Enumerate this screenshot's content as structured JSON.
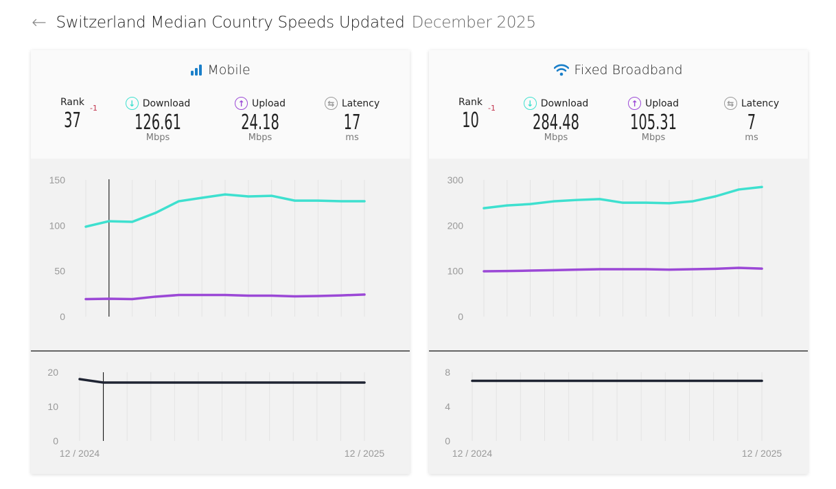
{
  "header": {
    "back_icon": "arrow-left-icon",
    "title": "Switzerland Median Country Speeds Updated",
    "date": "December 2025"
  },
  "colors": {
    "download": "#3ee0cf",
    "upload": "#9b48d6",
    "latency": "#1f2433",
    "rank_change": "#c0304a",
    "mobile_icon": "#1a7fc9"
  },
  "cards": [
    {
      "title": "Mobile",
      "icon": "signal-bars-icon",
      "rank": "37",
      "rank_change": "-1",
      "rank_label": "Rank",
      "download_label": "Download",
      "download": "126.61",
      "download_unit": "Mbps",
      "upload_label": "Upload",
      "upload": "24.18",
      "upload_unit": "Mbps",
      "latency_label": "Latency",
      "latency": "17",
      "latency_unit": "ms",
      "x_start": "12 / 2024",
      "x_end": "12 / 2025"
    },
    {
      "title": "Fixed Broadband",
      "icon": "wifi-icon",
      "rank": "10",
      "rank_change": "-1",
      "rank_label": "Rank",
      "download_label": "Download",
      "download": "284.48",
      "download_unit": "Mbps",
      "upload_label": "Upload",
      "upload": "105.31",
      "upload_unit": "Mbps",
      "latency_label": "Latency",
      "latency": "7",
      "latency_unit": "ms",
      "x_start": "12 / 2024",
      "x_end": "12 / 2025"
    }
  ],
  "chart_data": [
    {
      "type": "line",
      "card": "Mobile",
      "ylim": [
        0,
        150
      ],
      "yticks": [
        "0",
        "50",
        "100",
        "150"
      ],
      "series": [
        {
          "key": "download",
          "values": [
            98.7,
            104.7,
            104,
            113.8,
            126.6,
            130.4,
            134.1,
            131.9,
            132.6,
            127.3,
            127.3,
            126.6,
            126.61
          ]
        },
        {
          "key": "upload",
          "values": [
            19.2,
            19.6,
            19.2,
            21.9,
            23.7,
            23.7,
            23.7,
            23,
            23,
            22.2,
            22.6,
            23.3,
            24.18
          ]
        }
      ],
      "latency": {
        "ylim": [
          0,
          20
        ],
        "yticks": [
          "0",
          "10",
          "20"
        ],
        "values": [
          18,
          17,
          17,
          17,
          17,
          17,
          17,
          17,
          17,
          17,
          17,
          17,
          17
        ]
      },
      "hover_index": 1
    },
    {
      "type": "line",
      "card": "Fixed Broadband",
      "ylim": [
        0,
        300
      ],
      "yticks": [
        "0",
        "100",
        "200",
        "300"
      ],
      "series": [
        {
          "key": "download",
          "values": [
            238,
            244,
            247,
            253,
            256,
            258,
            250,
            250,
            249,
            253,
            264,
            279,
            284.48
          ]
        },
        {
          "key": "upload",
          "values": [
            99.5,
            100,
            101,
            102,
            103,
            104,
            104,
            104,
            103,
            104,
            105,
            107,
            105.31
          ]
        }
      ],
      "latency": {
        "ylim": [
          0,
          8
        ],
        "yticks": [
          "0",
          "4",
          "8"
        ],
        "values": [
          7,
          7,
          7,
          7,
          7,
          7,
          7,
          7,
          7,
          7,
          7,
          7,
          7
        ]
      }
    }
  ]
}
